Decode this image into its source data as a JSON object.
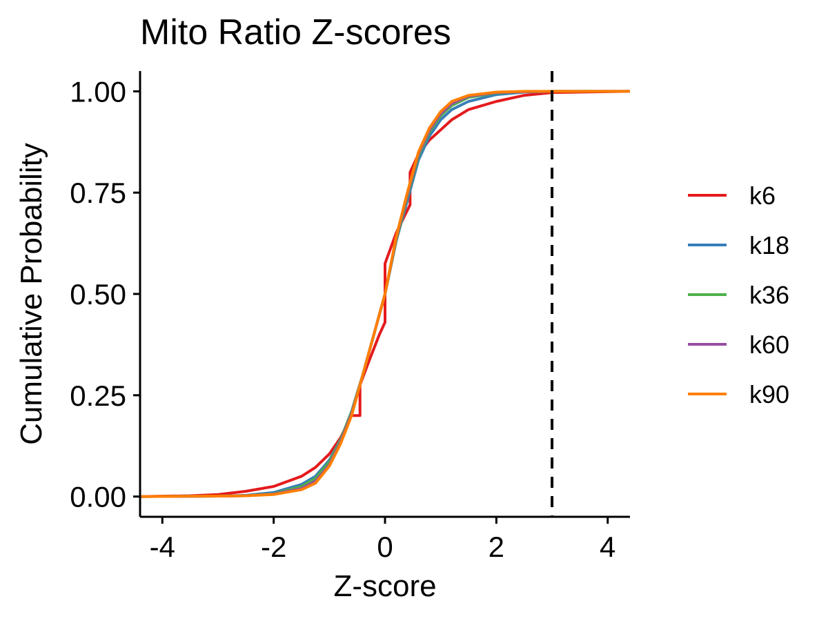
{
  "chart_data": {
    "type": "line",
    "subtype": "ecdf",
    "title": "Mito Ratio Z-scores",
    "xlabel": "Z-score",
    "ylabel": "Cumulative Probability",
    "xlim": [
      -4.4,
      4.4
    ],
    "ylim": [
      -0.05,
      1.05
    ],
    "x_ticks": [
      -4,
      -2,
      0,
      2,
      4
    ],
    "x_tick_labels": [
      "-4",
      "-2",
      "0",
      "2",
      "4"
    ],
    "y_ticks": [
      0,
      0.25,
      0.5,
      0.75,
      1
    ],
    "y_tick_labels": [
      "0.00",
      "0.25",
      "0.50",
      "0.75",
      "1.00"
    ],
    "grid": false,
    "legend_position": "right",
    "reference_line": {
      "orientation": "vertical",
      "x": 3,
      "style": "dashed",
      "color": "#000000"
    },
    "series": [
      {
        "name": "k6",
        "color": "#E41A1C",
        "x": [
          -4.4,
          -3.5,
          -3.0,
          -2.5,
          -2.0,
          -1.5,
          -1.25,
          -1.0,
          -0.8,
          -0.6,
          -0.45,
          -0.45,
          -0.3,
          -0.1,
          0.0,
          0.0,
          0.2,
          0.45,
          0.45,
          0.6,
          0.8,
          1.0,
          1.2,
          1.5,
          2.0,
          2.5,
          3.0,
          4.4
        ],
        "y": [
          0.0,
          0.002,
          0.005,
          0.013,
          0.025,
          0.05,
          0.072,
          0.105,
          0.145,
          0.2,
          0.2,
          0.275,
          0.33,
          0.4,
          0.43,
          0.575,
          0.65,
          0.72,
          0.8,
          0.845,
          0.88,
          0.905,
          0.93,
          0.955,
          0.975,
          0.99,
          0.997,
          1.0
        ]
      },
      {
        "name": "k18",
        "color": "#377EB8",
        "x": [
          -4.4,
          -3.0,
          -2.5,
          -2.0,
          -1.5,
          -1.25,
          -1.0,
          -0.8,
          -0.6,
          -0.4,
          -0.2,
          0.0,
          0.2,
          0.4,
          0.6,
          0.8,
          1.0,
          1.2,
          1.5,
          2.0,
          2.5,
          3.0,
          4.4
        ],
        "y": [
          0.0,
          0.001,
          0.003,
          0.01,
          0.03,
          0.05,
          0.09,
          0.14,
          0.21,
          0.3,
          0.4,
          0.5,
          0.63,
          0.73,
          0.83,
          0.89,
          0.93,
          0.955,
          0.975,
          0.992,
          0.998,
          1.0,
          1.0
        ]
      },
      {
        "name": "k36",
        "color": "#4DAF4A",
        "x": [
          -4.4,
          -3.0,
          -2.5,
          -2.0,
          -1.5,
          -1.25,
          -1.0,
          -0.8,
          -0.6,
          -0.4,
          -0.2,
          0.0,
          0.2,
          0.4,
          0.6,
          0.8,
          1.0,
          1.2,
          1.5,
          2.0,
          2.5,
          3.0,
          4.4
        ],
        "y": [
          0.0,
          0.001,
          0.002,
          0.007,
          0.025,
          0.045,
          0.085,
          0.14,
          0.21,
          0.3,
          0.4,
          0.5,
          0.63,
          0.74,
          0.84,
          0.9,
          0.94,
          0.965,
          0.985,
          0.996,
          0.999,
          1.0,
          1.0
        ]
      },
      {
        "name": "k60",
        "color": "#984EA3",
        "x": [
          -4.4,
          -3.0,
          -2.5,
          -2.0,
          -1.5,
          -1.25,
          -1.0,
          -0.8,
          -0.6,
          -0.4,
          -0.2,
          0.0,
          0.2,
          0.4,
          0.6,
          0.8,
          1.0,
          1.2,
          1.5,
          2.0,
          2.5,
          3.0,
          4.4
        ],
        "y": [
          0.0,
          0.001,
          0.002,
          0.006,
          0.02,
          0.038,
          0.078,
          0.135,
          0.205,
          0.3,
          0.4,
          0.5,
          0.635,
          0.745,
          0.845,
          0.905,
          0.945,
          0.97,
          0.988,
          0.997,
          0.999,
          1.0,
          1.0
        ]
      },
      {
        "name": "k90",
        "color": "#FF7F00",
        "x": [
          -4.4,
          -3.0,
          -2.5,
          -2.0,
          -1.5,
          -1.25,
          -1.0,
          -0.8,
          -0.6,
          -0.4,
          -0.2,
          0.0,
          0.2,
          0.4,
          0.6,
          0.8,
          1.0,
          1.2,
          1.5,
          2.0,
          2.5,
          3.0,
          4.4
        ],
        "y": [
          0.0,
          0.001,
          0.002,
          0.005,
          0.017,
          0.033,
          0.075,
          0.13,
          0.2,
          0.3,
          0.4,
          0.5,
          0.64,
          0.75,
          0.85,
          0.91,
          0.95,
          0.975,
          0.99,
          0.998,
          1.0,
          1.0,
          1.0
        ]
      }
    ]
  }
}
